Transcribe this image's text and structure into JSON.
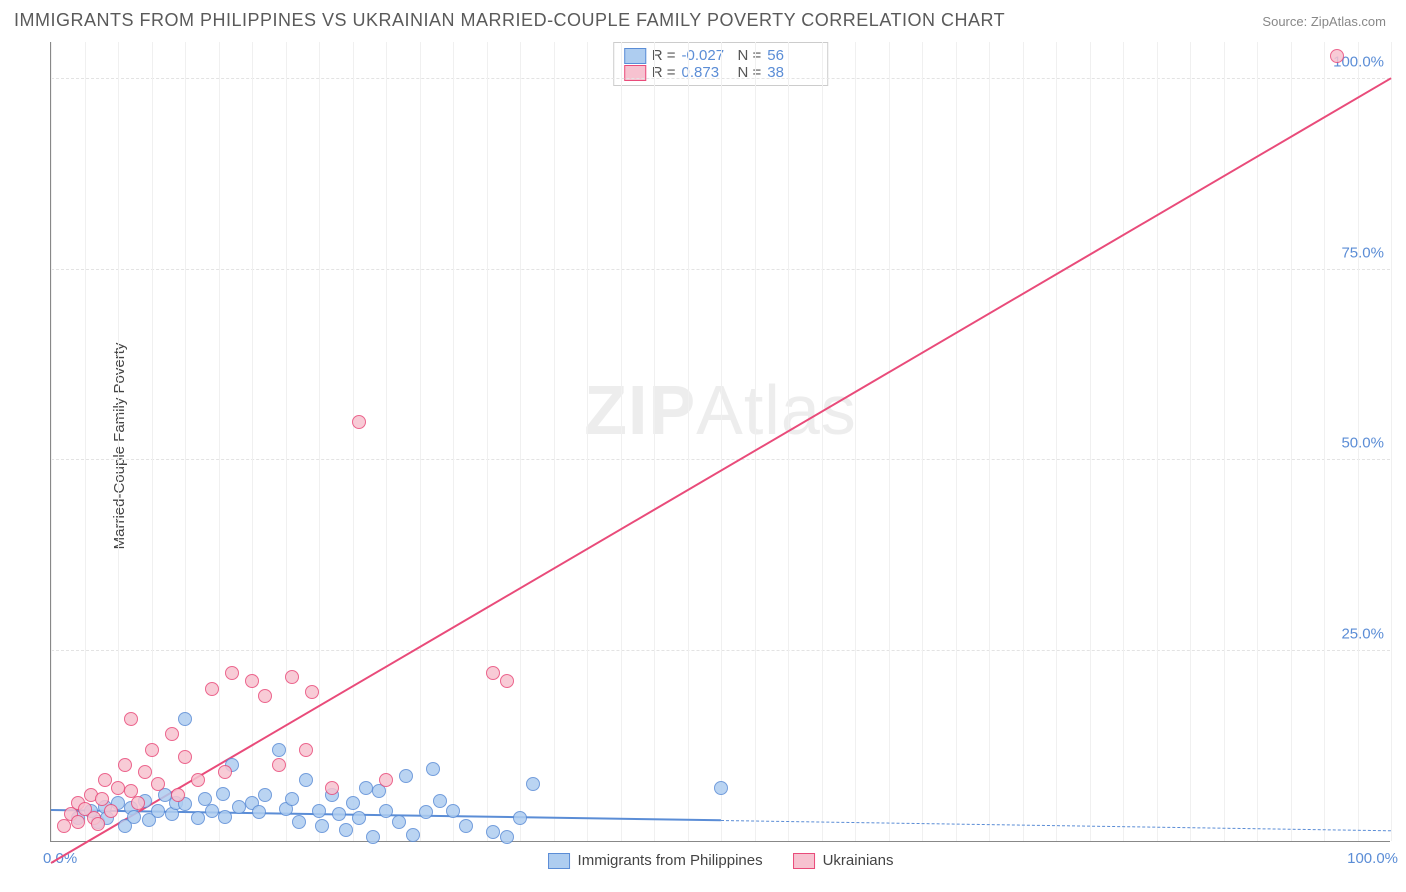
{
  "title": "IMMIGRANTS FROM PHILIPPINES VS UKRAINIAN MARRIED-COUPLE FAMILY POVERTY CORRELATION CHART",
  "source_label": "Source:",
  "source_name": "ZipAtlas.com",
  "ylabel": "Married-Couple Family Poverty",
  "watermark": {
    "zip": "ZIP",
    "atlas": "Atlas"
  },
  "chart": {
    "type": "scatter",
    "xlim": [
      0,
      100
    ],
    "ylim": [
      0,
      105
    ],
    "x_ticks": [
      0,
      100
    ],
    "x_tick_labels": [
      "0.0%",
      "100.0%"
    ],
    "y_ticks": [
      25,
      50,
      75,
      100
    ],
    "y_tick_labels": [
      "25.0%",
      "50.0%",
      "75.0%",
      "100.0%"
    ],
    "minor_x_step": 2.5,
    "grid_color": "#e3e3e3",
    "minor_grid_color": "#f0f0f0",
    "background_color": "#ffffff",
    "axis_color": "#888888",
    "tick_label_color": "#5b8dd6",
    "marker_radius": 7,
    "series": [
      {
        "name": "Immigrants from Philippines",
        "fill": "#aecdf0",
        "stroke": "#5b8dd6",
        "trend": {
          "slope": -0.027,
          "intercept": 4.0,
          "x0": 0,
          "x1": 50,
          "dash": false,
          "width": 2
        },
        "trend_ext": {
          "x0": 50,
          "x1": 100,
          "dash": true,
          "width": 1.5
        },
        "R": "-0.027",
        "N": "56",
        "points": [
          [
            2,
            3
          ],
          [
            3,
            4
          ],
          [
            3.5,
            2.5
          ],
          [
            4,
            4.5
          ],
          [
            4.2,
            3
          ],
          [
            5,
            5
          ],
          [
            5.5,
            2
          ],
          [
            6,
            4.3
          ],
          [
            6.2,
            3.2
          ],
          [
            7,
            5.2
          ],
          [
            7.3,
            2.8
          ],
          [
            8,
            4
          ],
          [
            8.5,
            6
          ],
          [
            9,
            3.5
          ],
          [
            9.3,
            5
          ],
          [
            10,
            4.8
          ],
          [
            10,
            16
          ],
          [
            11,
            3
          ],
          [
            11.5,
            5.5
          ],
          [
            12,
            4
          ],
          [
            12.8,
            6.2
          ],
          [
            13,
            3.2
          ],
          [
            13.5,
            10
          ],
          [
            14,
            4.5
          ],
          [
            15,
            5
          ],
          [
            15.5,
            3.8
          ],
          [
            16,
            6
          ],
          [
            17,
            12
          ],
          [
            17.5,
            4.2
          ],
          [
            18,
            5.5
          ],
          [
            18.5,
            2.5
          ],
          [
            19,
            8
          ],
          [
            20,
            4
          ],
          [
            20.2,
            2
          ],
          [
            21,
            6
          ],
          [
            21.5,
            3.5
          ],
          [
            22,
            1.5
          ],
          [
            22.5,
            5
          ],
          [
            23,
            3
          ],
          [
            24,
            0.5
          ],
          [
            24.5,
            6.5
          ],
          [
            25,
            4
          ],
          [
            26,
            2.5
          ],
          [
            26.5,
            8.5
          ],
          [
            27,
            0.8
          ],
          [
            28,
            3.8
          ],
          [
            28.5,
            9.5
          ],
          [
            29,
            5.2
          ],
          [
            33,
            1.2
          ],
          [
            35,
            3
          ],
          [
            36,
            7.5
          ],
          [
            50,
            7
          ],
          [
            34,
            0.5
          ],
          [
            30,
            4
          ],
          [
            31,
            2
          ],
          [
            23.5,
            7
          ]
        ]
      },
      {
        "name": "Ukrainians",
        "fill": "#f7c2d0",
        "stroke": "#e94b7a",
        "trend": {
          "slope": 1.03,
          "intercept": -3.0,
          "x0": 0,
          "x1": 100,
          "dash": false,
          "width": 2
        },
        "R": "0.873",
        "N": "38",
        "points": [
          [
            1,
            2
          ],
          [
            1.5,
            3.5
          ],
          [
            2,
            5
          ],
          [
            2,
            2.5
          ],
          [
            2.5,
            4.2
          ],
          [
            3,
            6
          ],
          [
            3.2,
            3
          ],
          [
            3.8,
            5.5
          ],
          [
            4,
            8
          ],
          [
            4.5,
            4
          ],
          [
            5,
            7
          ],
          [
            5.5,
            10
          ],
          [
            6,
            6.5
          ],
          [
            6,
            16
          ],
          [
            6.5,
            5
          ],
          [
            7,
            9
          ],
          [
            7.5,
            12
          ],
          [
            8,
            7.5
          ],
          [
            9,
            14
          ],
          [
            9.5,
            6
          ],
          [
            10,
            11
          ],
          [
            11,
            8
          ],
          [
            12,
            20
          ],
          [
            13,
            9
          ],
          [
            13.5,
            22
          ],
          [
            15,
            21
          ],
          [
            16,
            19
          ],
          [
            17,
            10
          ],
          [
            18,
            21.5
          ],
          [
            19,
            12
          ],
          [
            19.5,
            19.5
          ],
          [
            21,
            7
          ],
          [
            23,
            55
          ],
          [
            25,
            8
          ],
          [
            33,
            22
          ],
          [
            34,
            21
          ],
          [
            96,
            103
          ],
          [
            3.5,
            2.2
          ]
        ]
      }
    ]
  },
  "legend_top": {
    "r_label": "R =",
    "n_label": "N ="
  },
  "legend_bottom": [
    {
      "label": "Immigrants from Philippines",
      "fill": "#aecdf0",
      "stroke": "#5b8dd6"
    },
    {
      "label": "Ukrainians",
      "fill": "#f7c2d0",
      "stroke": "#e94b7a"
    }
  ]
}
